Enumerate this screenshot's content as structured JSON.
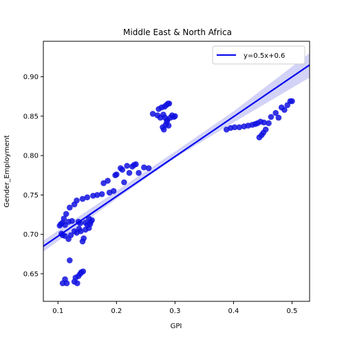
{
  "chart_data": {
    "type": "scatter",
    "title": "Middle East & North Africa",
    "xlabel": "GPI",
    "ylabel": "Gender_Employment",
    "xlim": [
      0.075,
      0.53
    ],
    "ylim": [
      0.615,
      0.945
    ],
    "xticks": [
      0.1,
      0.2,
      0.3,
      0.4,
      0.5
    ],
    "yticks": [
      0.65,
      0.7,
      0.75,
      0.8,
      0.85,
      0.9
    ],
    "xtick_labels": [
      "0.1",
      "0.2",
      "0.3",
      "0.4",
      "0.5"
    ],
    "ytick_labels": [
      "0.65",
      "0.70",
      "0.75",
      "0.80",
      "0.85",
      "0.90"
    ],
    "grid": false,
    "legend_position": "top-right",
    "colors": {
      "points": "#1010e0",
      "line": "#0000ee",
      "band": "#c8c8f5"
    },
    "regression": {
      "label": "y=0.5x+0.6",
      "x_range": [
        0.075,
        0.53
      ],
      "ci_low": [
        [
          0.075,
          0.678
        ],
        [
          0.2,
          0.745
        ],
        [
          0.3,
          0.797
        ],
        [
          0.4,
          0.842
        ],
        [
          0.53,
          0.899
        ]
      ],
      "ci_high": [
        [
          0.075,
          0.692
        ],
        [
          0.2,
          0.755
        ],
        [
          0.3,
          0.805
        ],
        [
          0.4,
          0.856
        ],
        [
          0.53,
          0.93
        ]
      ],
      "line": [
        [
          0.075,
          0.685
        ],
        [
          0.53,
          0.915
        ]
      ]
    },
    "points": [
      [
        0.103,
        0.711
      ],
      [
        0.105,
        0.713
      ],
      [
        0.108,
        0.715
      ],
      [
        0.11,
        0.72
      ],
      [
        0.112,
        0.712
      ],
      [
        0.114,
        0.726
      ],
      [
        0.118,
        0.716
      ],
      [
        0.12,
        0.734
      ],
      [
        0.124,
        0.717
      ],
      [
        0.128,
        0.738
      ],
      [
        0.132,
        0.743
      ],
      [
        0.135,
        0.716
      ],
      [
        0.138,
        0.714
      ],
      [
        0.142,
        0.745
      ],
      [
        0.147,
        0.715
      ],
      [
        0.15,
        0.747
      ],
      [
        0.153,
        0.72
      ],
      [
        0.156,
        0.716
      ],
      [
        0.158,
        0.718
      ],
      [
        0.16,
        0.749
      ],
      [
        0.167,
        0.75
      ],
      [
        0.175,
        0.751
      ],
      [
        0.178,
        0.765
      ],
      [
        0.185,
        0.768
      ],
      [
        0.188,
        0.753
      ],
      [
        0.195,
        0.755
      ],
      [
        0.198,
        0.775
      ],
      [
        0.2,
        0.776
      ],
      [
        0.207,
        0.784
      ],
      [
        0.21,
        0.782
      ],
      [
        0.213,
        0.766
      ],
      [
        0.218,
        0.787
      ],
      [
        0.222,
        0.778
      ],
      [
        0.227,
        0.786
      ],
      [
        0.23,
        0.788
      ],
      [
        0.233,
        0.789
      ],
      [
        0.238,
        0.778
      ],
      [
        0.247,
        0.785
      ],
      [
        0.255,
        0.784
      ],
      [
        0.106,
        0.701
      ],
      [
        0.108,
        0.699
      ],
      [
        0.112,
        0.698
      ],
      [
        0.118,
        0.694
      ],
      [
        0.122,
        0.699
      ],
      [
        0.128,
        0.704
      ],
      [
        0.132,
        0.702
      ],
      [
        0.136,
        0.707
      ],
      [
        0.139,
        0.704
      ],
      [
        0.142,
        0.691
      ],
      [
        0.144,
        0.695
      ],
      [
        0.147,
        0.706
      ],
      [
        0.15,
        0.712
      ],
      [
        0.153,
        0.708
      ],
      [
        0.155,
        0.713
      ],
      [
        0.12,
        0.667
      ],
      [
        0.108,
        0.638
      ],
      [
        0.112,
        0.643
      ],
      [
        0.115,
        0.638
      ],
      [
        0.128,
        0.64
      ],
      [
        0.13,
        0.645
      ],
      [
        0.133,
        0.638
      ],
      [
        0.135,
        0.647
      ],
      [
        0.138,
        0.65
      ],
      [
        0.14,
        0.652
      ],
      [
        0.143,
        0.653
      ],
      [
        0.262,
        0.853
      ],
      [
        0.27,
        0.851
      ],
      [
        0.272,
        0.859
      ],
      [
        0.275,
        0.848
      ],
      [
        0.277,
        0.861
      ],
      [
        0.279,
        0.836
      ],
      [
        0.28,
        0.852
      ],
      [
        0.281,
        0.833
      ],
      [
        0.282,
        0.862
      ],
      [
        0.283,
        0.848
      ],
      [
        0.284,
        0.839
      ],
      [
        0.285,
        0.864
      ],
      [
        0.286,
        0.843
      ],
      [
        0.287,
        0.845
      ],
      [
        0.288,
        0.866
      ],
      [
        0.289,
        0.838
      ],
      [
        0.29,
        0.866
      ],
      [
        0.292,
        0.848
      ],
      [
        0.295,
        0.851
      ],
      [
        0.298,
        0.849
      ],
      [
        0.3,
        0.85
      ],
      [
        0.388,
        0.833
      ],
      [
        0.395,
        0.835
      ],
      [
        0.402,
        0.836
      ],
      [
        0.41,
        0.836
      ],
      [
        0.418,
        0.837
      ],
      [
        0.425,
        0.838
      ],
      [
        0.432,
        0.839
      ],
      [
        0.437,
        0.84
      ],
      [
        0.441,
        0.841
      ],
      [
        0.444,
        0.823
      ],
      [
        0.446,
        0.843
      ],
      [
        0.448,
        0.826
      ],
      [
        0.451,
        0.829
      ],
      [
        0.452,
        0.842
      ],
      [
        0.455,
        0.833
      ],
      [
        0.46,
        0.841
      ],
      [
        0.464,
        0.849
      ],
      [
        0.472,
        0.854
      ],
      [
        0.477,
        0.848
      ],
      [
        0.482,
        0.861
      ],
      [
        0.487,
        0.858
      ],
      [
        0.492,
        0.864
      ],
      [
        0.497,
        0.869
      ],
      [
        0.5,
        0.869
      ]
    ]
  }
}
